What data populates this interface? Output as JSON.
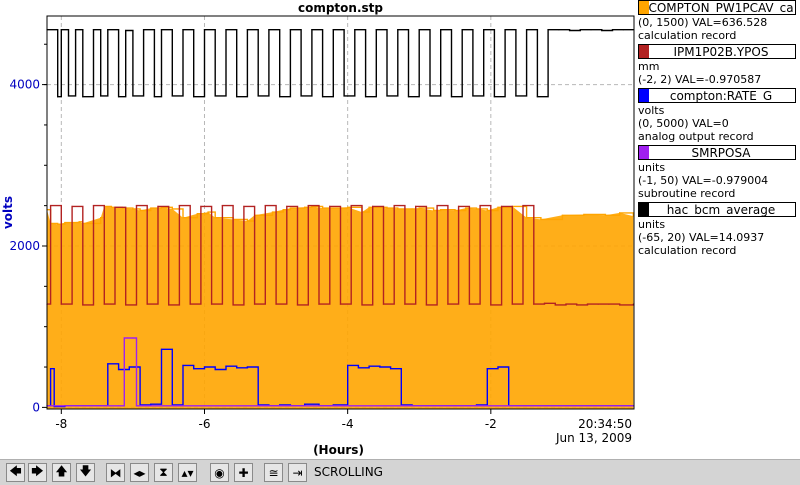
{
  "chart_data": {
    "type": "line",
    "title": "compton.stp",
    "xlabel": "(Hours)",
    "ylabel": "volts",
    "xlim": [
      -8.2,
      0.0
    ],
    "ylim": [
      -20,
      4850
    ],
    "x_ticks": [
      -8,
      -6,
      -4,
      -2
    ],
    "y_ticks": [
      0,
      2000,
      4000
    ],
    "x_tick_labels": [
      "-8",
      "-6",
      "-4",
      "-2"
    ],
    "y_tick_labels": [
      "0",
      "2000",
      "4000"
    ],
    "time_label": "20:34:50",
    "date_label": "Jun 13, 2009",
    "grid": true,
    "series": [
      {
        "name": "COMPTON_PW1PCAV_ca",
        "color": "#ffa500",
        "fill": true,
        "x": [
          -8.2,
          -8.15,
          -8.05,
          -7.95,
          -7.75,
          -7.7,
          -7.45,
          -7.4,
          -7.3,
          -7.15,
          -7.0,
          -6.9,
          -6.75,
          -6.6,
          -6.45,
          -6.3,
          -6.1,
          -5.95,
          -5.85,
          -5.6,
          -5.4,
          -5.3,
          -5.05,
          -4.9,
          -4.8,
          -4.6,
          -4.5,
          -4.35,
          -4.2,
          -4.0,
          -3.8,
          -3.7,
          -3.45,
          -3.3,
          -3.1,
          -3.0,
          -2.8,
          -2.7,
          -2.5,
          -2.35,
          -2.2,
          -2.05,
          -1.9,
          -1.7,
          -1.5,
          -1.3,
          -1.0,
          -0.7,
          -0.4,
          -0.2,
          -0.01
        ],
        "values": [
          2450,
          2280,
          2270,
          2290,
          2300,
          2280,
          2350,
          2490,
          2480,
          2470,
          2460,
          2440,
          2470,
          2480,
          2460,
          2350,
          2400,
          2420,
          2350,
          2330,
          2310,
          2380,
          2420,
          2450,
          2470,
          2480,
          2490,
          2470,
          2470,
          2480,
          2420,
          2480,
          2470,
          2460,
          2460,
          2470,
          2440,
          2450,
          2440,
          2470,
          2460,
          2440,
          2480,
          2490,
          2350,
          2330,
          2380,
          2390,
          2380,
          2410,
          2370
        ]
      },
      {
        "name": "IPM1P02B.YPOS",
        "color": "#b22222",
        "x": [
          -8.2,
          -8.15,
          -8.0,
          -7.85,
          -7.7,
          -7.55,
          -7.4,
          -7.25,
          -7.1,
          -6.95,
          -6.8,
          -6.65,
          -6.5,
          -6.35,
          -6.2,
          -6.05,
          -5.9,
          -5.75,
          -5.6,
          -5.45,
          -5.3,
          -5.15,
          -5.0,
          -4.85,
          -4.7,
          -4.55,
          -4.4,
          -4.25,
          -4.1,
          -3.95,
          -3.8,
          -3.65,
          -3.5,
          -3.35,
          -3.2,
          -3.05,
          -2.9,
          -2.75,
          -2.6,
          -2.45,
          -2.3,
          -2.15,
          -2.0,
          -1.85,
          -1.7,
          -1.55,
          -1.4,
          -1.25,
          -1.1,
          -0.95,
          -0.8,
          -0.65,
          -0.5,
          -0.35,
          -0.2,
          -0.01
        ],
        "values": [
          1280,
          2500,
          1280,
          2490,
          1270,
          2500,
          1280,
          2480,
          1270,
          2500,
          1280,
          2490,
          1270,
          2500,
          1280,
          2490,
          1280,
          2500,
          1270,
          2490,
          1280,
          2500,
          1280,
          2490,
          1270,
          2500,
          1280,
          2490,
          1280,
          2500,
          1270,
          2490,
          1280,
          2500,
          1280,
          2490,
          1270,
          2500,
          1280,
          2490,
          1280,
          2500,
          1270,
          2490,
          1280,
          2500,
          1280,
          1290,
          1270,
          1280,
          1270,
          1280,
          1280,
          1280,
          1270,
          1280
        ]
      },
      {
        "name": "compton:RATE_G",
        "color": "#0000ff",
        "x": [
          -8.2,
          -8.15,
          -8.1,
          -7.95,
          -7.7,
          -7.45,
          -7.35,
          -7.2,
          -7.05,
          -6.9,
          -6.75,
          -6.6,
          -6.45,
          -6.3,
          -6.15,
          -6.0,
          -5.85,
          -5.7,
          -5.55,
          -5.4,
          -5.25,
          -5.1,
          -4.95,
          -4.8,
          -4.6,
          -4.4,
          -4.2,
          -4.0,
          -3.85,
          -3.7,
          -3.55,
          -3.4,
          -3.25,
          -3.1,
          -2.95,
          -2.8,
          -2.65,
          -2.5,
          -2.35,
          -2.2,
          -2.05,
          -1.9,
          -1.75,
          -1.6,
          -1.4,
          -1.2,
          -1.0,
          -0.8,
          -0.6,
          -0.4,
          -0.2,
          -0.01
        ],
        "values": [
          20,
          480,
          10,
          20,
          20,
          20,
          540,
          470,
          500,
          30,
          40,
          720,
          30,
          520,
          480,
          500,
          470,
          510,
          490,
          500,
          30,
          20,
          30,
          20,
          40,
          20,
          30,
          520,
          490,
          510,
          500,
          480,
          30,
          20,
          20,
          20,
          20,
          20,
          20,
          30,
          480,
          500,
          20,
          20,
          20,
          20,
          20,
          20,
          20,
          20,
          20,
          20
        ]
      },
      {
        "name": "SMRPOSA",
        "color": "#a020f0",
        "x": [
          -8.2,
          -7.2,
          -7.12,
          -7.08,
          -7.0,
          -6.95,
          -6.0,
          -5.0,
          -4.0,
          -3.0,
          -2.0,
          -1.0,
          -0.01
        ],
        "values": [
          20,
          20,
          860,
          860,
          860,
          20,
          20,
          20,
          20,
          20,
          20,
          20,
          20
        ]
      },
      {
        "name": "hac_bcm_average",
        "color": "#000000",
        "x": [
          -8.2,
          -8.05,
          -8.0,
          -7.9,
          -7.8,
          -7.7,
          -7.55,
          -7.45,
          -7.35,
          -7.2,
          -7.1,
          -7.0,
          -6.85,
          -6.7,
          -6.6,
          -6.45,
          -6.3,
          -6.15,
          -6.0,
          -5.85,
          -5.7,
          -5.55,
          -5.4,
          -5.25,
          -5.1,
          -4.95,
          -4.8,
          -4.65,
          -4.5,
          -4.35,
          -4.2,
          -4.05,
          -3.9,
          -3.75,
          -3.6,
          -3.45,
          -3.3,
          -3.15,
          -3.0,
          -2.85,
          -2.7,
          -2.55,
          -2.4,
          -2.25,
          -2.1,
          -1.95,
          -1.8,
          -1.65,
          -1.5,
          -1.35,
          -1.2,
          -1.05,
          -0.9,
          -0.75,
          -0.6,
          -0.45,
          -0.3,
          -0.15,
          -0.01
        ],
        "values": [
          4680,
          3850,
          4680,
          3860,
          4680,
          3850,
          4680,
          3860,
          4680,
          3850,
          4670,
          3860,
          4680,
          3850,
          4680,
          3860,
          4680,
          3850,
          4680,
          3860,
          4680,
          3850,
          4680,
          3860,
          4680,
          3850,
          4680,
          3860,
          4680,
          3850,
          4680,
          3860,
          4680,
          3850,
          4680,
          3860,
          4680,
          3850,
          4680,
          3860,
          4680,
          3850,
          4680,
          3860,
          4680,
          3850,
          4680,
          3860,
          4680,
          3850,
          4680,
          4680,
          4670,
          4680,
          4680,
          4670,
          4680,
          4680,
          4680
        ]
      }
    ]
  },
  "legend": [
    {
      "name": "COMPTON_PW1PCAV_ca",
      "color": "#ffa500",
      "range": "(0, 1500) VAL=636.528",
      "units": "",
      "record": "calculation record"
    },
    {
      "name": "IPM1P02B.YPOS",
      "color": "#b22222",
      "range": "(-2, 2) VAL=-0.970587",
      "units": "mm",
      "record": ""
    },
    {
      "name": "compton:RATE_G",
      "color": "#0000ff",
      "range": "(0, 5000) VAL=0",
      "units": "volts",
      "record": "analog output record"
    },
    {
      "name": "SMRPOSA",
      "color": "#a020f0",
      "range": "(-1, 50) VAL=-0.979004",
      "units": "units",
      "record": "subroutine record"
    },
    {
      "name": "hac_bcm_average",
      "color": "#000000",
      "range": "(-65, 20) VAL=14.0937",
      "units": "units",
      "record": "calculation record"
    }
  ],
  "toolbar": {
    "status": "SCROLLING",
    "buttons": [
      {
        "name": "pan-left-button",
        "glyph": "🡄",
        "icon": "arrow-left-icon"
      },
      {
        "name": "pan-right-button",
        "glyph": "🡆",
        "icon": "arrow-right-icon"
      },
      {
        "name": "pan-up-button",
        "glyph": "🡅",
        "icon": "arrow-up-icon"
      },
      {
        "name": "pan-down-button",
        "glyph": "🡇",
        "icon": "arrow-down-icon"
      },
      {
        "name": "zoom-in-x-button",
        "glyph": "⧓",
        "icon": "zoom-in-horizontal-icon"
      },
      {
        "name": "zoom-out-x-button",
        "glyph": "◂▸",
        "icon": "zoom-out-horizontal-icon"
      },
      {
        "name": "zoom-in-y-button",
        "glyph": "⧗",
        "icon": "zoom-in-vertical-icon"
      },
      {
        "name": "zoom-out-y-button",
        "glyph": "▴▾",
        "icon": "zoom-out-vertical-icon"
      },
      {
        "name": "zoom-reset-button",
        "glyph": "◉",
        "icon": "zoom-reset-icon"
      },
      {
        "name": "zoom-box-button",
        "glyph": "✚",
        "icon": "crosshair-icon"
      },
      {
        "name": "scale-button",
        "glyph": "≅",
        "icon": "scale-icon"
      },
      {
        "name": "scroll-button",
        "glyph": "⇥",
        "icon": "scroll-to-end-icon"
      }
    ]
  }
}
